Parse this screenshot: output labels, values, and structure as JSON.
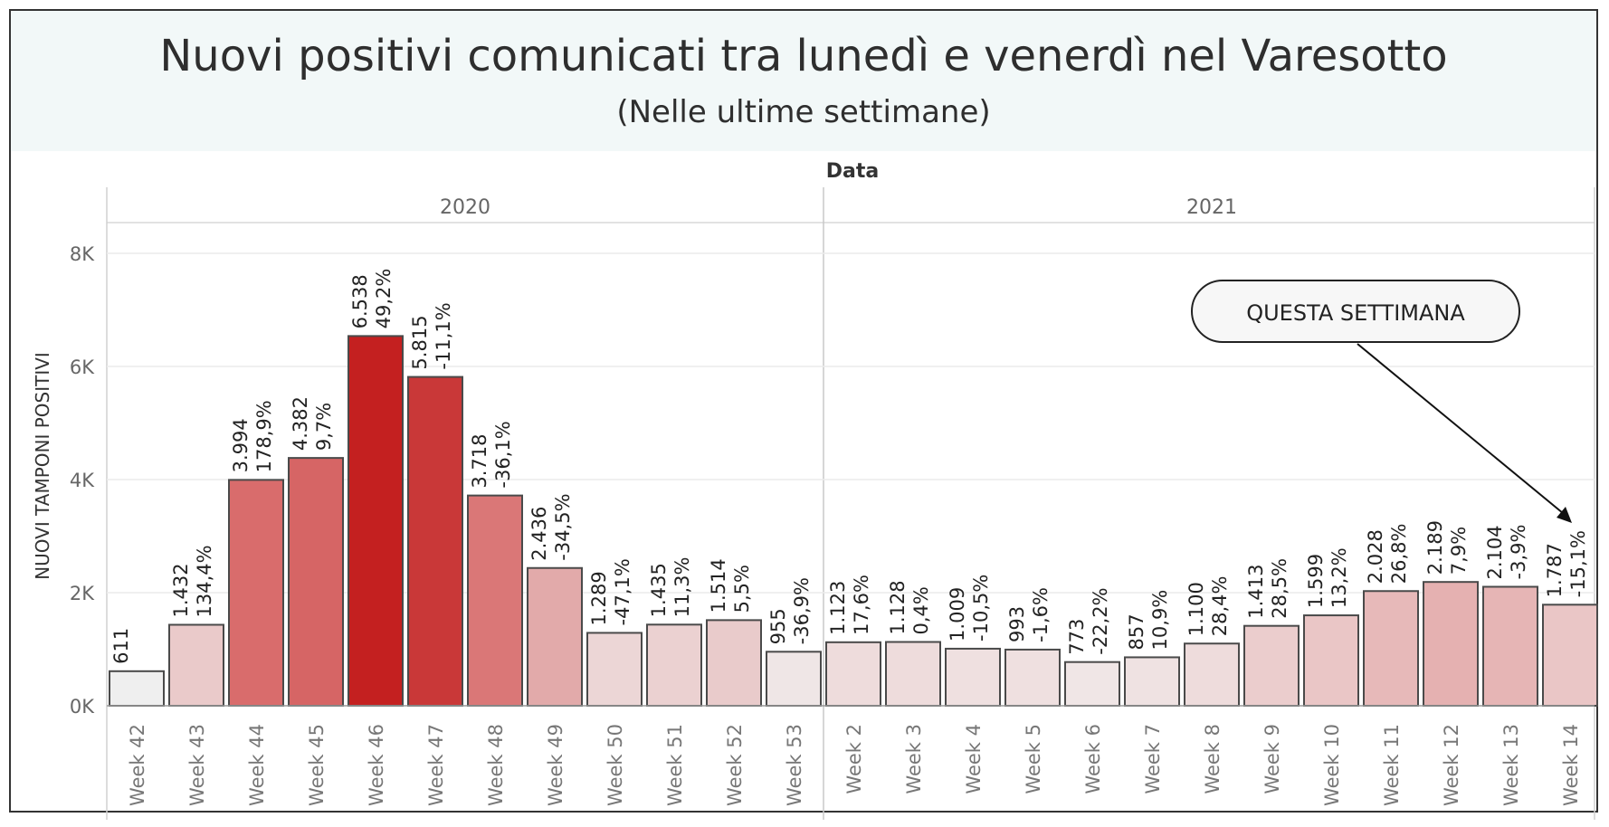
{
  "header": {
    "title": "Nuovi positivi comunicati tra lunedì e venerdì nel Varesotto",
    "subtitle": "(Nelle ultime settimane)"
  },
  "chart_data": {
    "type": "bar",
    "column_header": "Data",
    "ylabel": "NUOVI TAMPONI POSITIVI",
    "ylim": [
      0,
      8800
    ],
    "yticks": [
      0,
      2000,
      4000,
      6000,
      8000
    ],
    "ytick_labels": [
      "0K",
      "2K",
      "4K",
      "6K",
      "8K"
    ],
    "grid": true,
    "groups": [
      {
        "label": "2020",
        "count": 12
      },
      {
        "label": "2021",
        "count": 13
      }
    ],
    "categories": [
      "Week 42",
      "Week 43",
      "Week 44",
      "Week 45",
      "Week 46",
      "Week 47",
      "Week 48",
      "Week 49",
      "Week 50",
      "Week 51",
      "Week 52",
      "Week 53",
      "Week 2",
      "Week 3",
      "Week 4",
      "Week 5",
      "Week 6",
      "Week 7",
      "Week 8",
      "Week 9",
      "Week 10",
      "Week 11",
      "Week 12",
      "Week 13",
      "Week 14"
    ],
    "values": [
      611,
      1432,
      3994,
      4382,
      6538,
      5815,
      3718,
      2436,
      1289,
      1435,
      1514,
      955,
      1123,
      1128,
      1009,
      993,
      773,
      857,
      1100,
      1413,
      1599,
      2028,
      2189,
      2104,
      1787
    ],
    "value_labels": [
      "611",
      "1.432",
      "3.994",
      "4.382",
      "6.538",
      "5.815",
      "3.718",
      "2.436",
      "1.289",
      "1.435",
      "1.514",
      "955",
      "1.123",
      "1.128",
      "1.009",
      "993",
      "773",
      "857",
      "1.100",
      "1.413",
      "1.599",
      "2.028",
      "2.189",
      "2.104",
      "1.787"
    ],
    "change_labels": [
      "",
      "134,4%",
      "178,9%",
      "9,7%",
      "49,2%",
      "-11,1%",
      "-36,1%",
      "-34,5%",
      "-47,1%",
      "11,3%",
      "5,5%",
      "-36,9%",
      "17,6%",
      "0,4%",
      "-10,5%",
      "-1,6%",
      "-22,2%",
      "10,9%",
      "28,4%",
      "28,5%",
      "13,2%",
      "26,8%",
      "7,9%",
      "-3,9%",
      "-15,1%"
    ],
    "colors": [
      "#efefef",
      "#eacaca",
      "#d96c6c",
      "#d66565",
      "#c42020",
      "#c93838",
      "#da7777",
      "#e2aaaa",
      "#ecd6d6",
      "#ebd1d1",
      "#e9cbcb",
      "#efe6e6",
      "#eedcdc",
      "#eedcdc",
      "#efe0e0",
      "#efe0e0",
      "#f0e6e6",
      "#efe2e2",
      "#eedcdc",
      "#ebcdcd",
      "#eac6c6",
      "#e7b9b9",
      "#e5b1b1",
      "#e6b5b5",
      "#eac6c6"
    ],
    "annotation": {
      "text": "QUESTA SETTIMANA",
      "target": "Week 14"
    }
  }
}
